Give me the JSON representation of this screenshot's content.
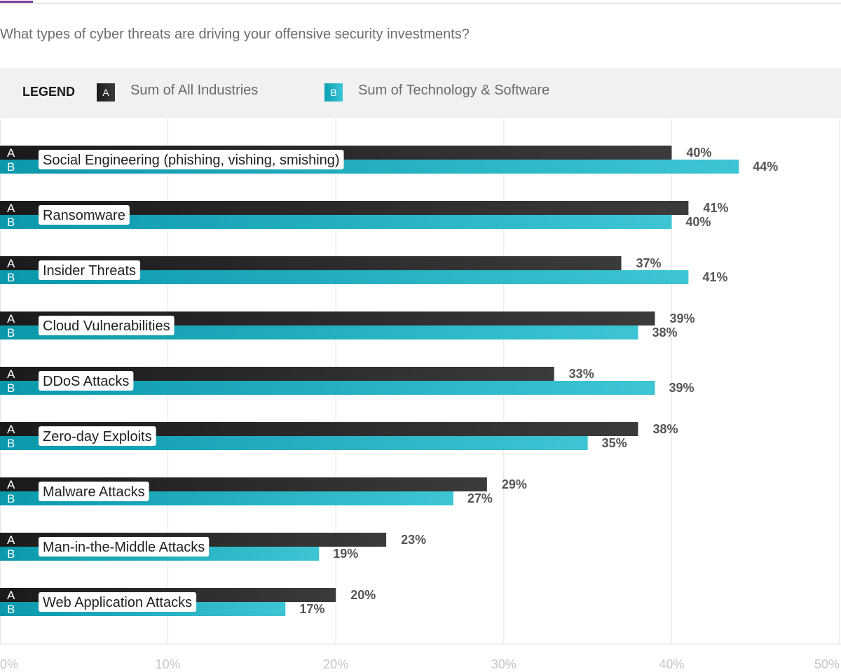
{
  "header": {
    "question": "What types of cyber threats are driving your offensive security investments?"
  },
  "legend": {
    "title": "LEGEND",
    "items": [
      {
        "key": "A",
        "label": "Sum of All Industries",
        "color": "#222222"
      },
      {
        "key": "B",
        "label": "Sum of Technology & Software",
        "color": "#12b3c6"
      }
    ]
  },
  "chart_data": {
    "type": "bar",
    "orientation": "horizontal",
    "title": "What types of cyber threats are driving your offensive security investments?",
    "categories": [
      "Social Engineering (phishing, vishing, smishing)",
      "Ransomware",
      "Insider Threats",
      "Cloud Vulnerabilities",
      "DDoS Attacks",
      "Zero-day Exploits",
      "Malware Attacks",
      "Man-in-the-Middle Attacks",
      "Web Application Attacks"
    ],
    "series": [
      {
        "key": "A",
        "name": "Sum of All Industries",
        "values": [
          40,
          41,
          37,
          39,
          33,
          38,
          29,
          23,
          20
        ],
        "labels": [
          "40%",
          "41%",
          "37%",
          "39%",
          "33%",
          "38%",
          "29%",
          "23%",
          "20%"
        ]
      },
      {
        "key": "B",
        "name": "Sum of Technology & Software",
        "values": [
          44,
          40,
          41,
          38,
          39,
          35,
          27,
          19,
          17
        ],
        "labels": [
          "44%",
          "40%",
          "41%",
          "38%",
          "39%",
          "35%",
          "27%",
          "19%",
          "17%"
        ]
      }
    ],
    "xlim": [
      0,
      50
    ],
    "xticks": [
      0,
      10,
      20,
      30,
      40,
      50
    ],
    "xtick_labels": [
      "0%",
      "10%",
      "20%",
      "30%",
      "40%",
      "50%"
    ],
    "grid": true,
    "legend_position": "top"
  }
}
